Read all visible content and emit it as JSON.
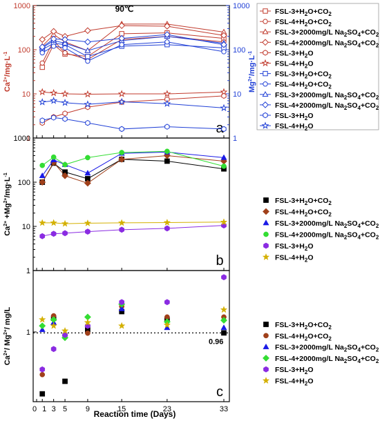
{
  "figure": {
    "temperature_label": "90℃",
    "xlabel": "Reaction time (Days)",
    "x_ticks": [
      0,
      1,
      3,
      5,
      9,
      15,
      23,
      33
    ]
  },
  "colors": {
    "ca_red": "#c0392b",
    "mg_blue": "#1f3fd6",
    "black": "#000000",
    "brown": "#a0401a",
    "blue": "#1a1ae6",
    "green": "#33dd33",
    "purple": "#8a2be2",
    "gold": "#d4b000"
  },
  "chart_data": [
    {
      "panel": "a",
      "type": "line",
      "title": "90℃",
      "ylabel_left": "Ca2+/mg·L-1",
      "ylabel_right": "Mg2+/mg·L-1",
      "yscale": "log",
      "ylim_left": [
        1,
        1000
      ],
      "ylim_right": [
        1,
        1000
      ],
      "y_ticks": [
        "1",
        "10",
        "100",
        "1000"
      ],
      "x": [
        1,
        3,
        5,
        9,
        15,
        23,
        33
      ],
      "series": [
        {
          "name": "FSL-3+H2O+CO2",
          "ion": "Ca",
          "marker": "square",
          "values": [
            40,
            130,
            80,
            70,
            230,
            240,
            180
          ]
        },
        {
          "name": "FSL-4+H2O+CO2",
          "ion": "Ca",
          "marker": "circle",
          "values": [
            50,
            160,
            85,
            60,
            170,
            200,
            150
          ]
        },
        {
          "name": "FSL-3+2000mg/L Na2SO4+CO2",
          "ion": "Ca",
          "marker": "triangle",
          "values": [
            120,
            220,
            150,
            95,
            380,
            380,
            250
          ]
        },
        {
          "name": "FSL-4+2000mg/L Na2SO4+CO2",
          "ion": "Ca",
          "marker": "diamond",
          "values": [
            170,
            260,
            200,
            270,
            350,
            340,
            210
          ]
        },
        {
          "name": "FSL-3+H2O",
          "ion": "Ca",
          "marker": "hexagon",
          "values": [
            2.2,
            3,
            3.6,
            5,
            6.5,
            7.5,
            9
          ]
        },
        {
          "name": "FSL-4+H2O",
          "ion": "Ca",
          "marker": "star",
          "values": [
            11,
            10.5,
            10,
            9.8,
            10,
            10,
            11
          ]
        },
        {
          "name": "FSL-3+H2O+CO2",
          "ion": "Mg",
          "marker": "square",
          "values": [
            100,
            140,
            130,
            70,
            120,
            130,
            110
          ]
        },
        {
          "name": "FSL-4+H2O+CO2",
          "ion": "Mg",
          "marker": "circle",
          "values": [
            85,
            120,
            110,
            55,
            130,
            150,
            90
          ]
        },
        {
          "name": "FSL-3+2000mg/L Na2SO4+CO2",
          "ion": "Mg",
          "marker": "triangle",
          "values": [
            110,
            160,
            140,
            95,
            160,
            200,
            140
          ]
        },
        {
          "name": "FSL-4+2000mg/L Na2SO4+CO2",
          "ion": "Mg",
          "marker": "diamond",
          "values": [
            115,
            175,
            170,
            150,
            180,
            220,
            130
          ]
        },
        {
          "name": "FSL-3+H2O",
          "ion": "Mg",
          "marker": "hexagon",
          "values": [
            2.5,
            2.9,
            2.7,
            2.2,
            1.6,
            1.8,
            1.6
          ]
        },
        {
          "name": "FSL-4+H2O",
          "ion": "Mg",
          "marker": "star",
          "values": [
            6.5,
            7,
            6.3,
            5.8,
            6.6,
            6,
            4.8
          ]
        }
      ]
    },
    {
      "panel": "b",
      "type": "line",
      "ylabel": "Ca2+ +Mg2+/mg·L-1",
      "yscale": "log",
      "ylim": [
        1,
        1000
      ],
      "y_ticks": [
        "1",
        "10",
        "100",
        "1000"
      ],
      "x": [
        1,
        3,
        5,
        9,
        15,
        23,
        33
      ],
      "series": [
        {
          "name": "FSL-3+H2O+CO2",
          "marker": "square",
          "values": [
            100,
            270,
            170,
            120,
            330,
            300,
            200
          ]
        },
        {
          "name": "FSL-4+H2O+CO2",
          "marker": "diamond",
          "values": [
            100,
            280,
            140,
            95,
            330,
            400,
            300
          ]
        },
        {
          "name": "FSL-3+2000mg/L Na2SO4+CO2",
          "marker": "triangle",
          "values": [
            140,
            320,
            250,
            160,
            450,
            480,
            360
          ]
        },
        {
          "name": "FSL-4+2000mg/L Na2SO4+CO2",
          "marker": "circle",
          "values": [
            240,
            370,
            250,
            360,
            470,
            500,
            230
          ]
        },
        {
          "name": "FSL-3+H2O",
          "marker": "hexagon",
          "values": [
            6,
            6.8,
            7,
            7.6,
            8.4,
            9,
            10.5
          ]
        },
        {
          "name": "FSL-4+H2O",
          "marker": "star",
          "values": [
            12,
            12,
            11.5,
            11.8,
            12,
            12.2,
            12.5
          ]
        }
      ]
    },
    {
      "panel": "c",
      "type": "scatter",
      "ylabel": "Ca2+/ Mg2+/ mg/L",
      "yscale": "log",
      "y_ticks": [
        "1"
      ],
      "reference_line": {
        "value": 0.96,
        "label": "0.96"
      },
      "x": [
        1,
        3,
        5,
        9,
        15,
        23,
        33
      ],
      "series": [
        {
          "name": "FSL-3+H2O+CO2",
          "marker": "square",
          "values": [
            0.07,
            1.8,
            0.12,
            1.1,
            2.4,
            1.7,
            0.96
          ]
        },
        {
          "name": "FSL-4+H2O+CO2",
          "marker": "circle",
          "values": [
            0.16,
            2.0,
            0.85,
            0.95,
            3.0,
            1.9,
            1.9
          ]
        },
        {
          "name": "FSL-3+2000mg/L Na2SO4+CO2",
          "marker": "triangle",
          "values": [
            1.1,
            1.5,
            0.92,
            1.4,
            2.7,
            1.2,
            1.2
          ]
        },
        {
          "name": "FSL-4+2000mg/L Na2SO4+CO2",
          "marker": "diamond",
          "values": [
            1.3,
            1.7,
            0.78,
            1.9,
            3.3,
            1.55,
            1.65
          ]
        },
        {
          "name": "FSL-3+H2O",
          "marker": "hexagon",
          "values": [
            0.2,
            0.48,
            0.88,
            1.3,
            3.6,
            3.6,
            10.5
          ]
        },
        {
          "name": "FSL-4+H2O",
          "marker": "star",
          "values": [
            1.7,
            1.3,
            1.05,
            1.5,
            1.3,
            1.35,
            2.6
          ]
        }
      ]
    }
  ]
}
